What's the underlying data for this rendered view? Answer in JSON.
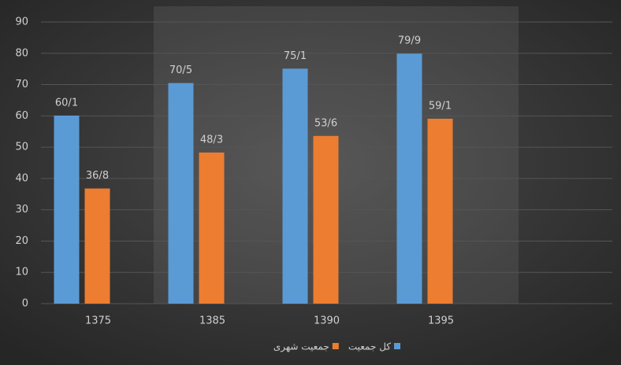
{
  "chart_data": {
    "type": "bar",
    "categories": [
      "1375",
      "1385",
      "1390",
      "1395",
      null
    ],
    "series": [
      {
        "name": "کل جمعیت",
        "color": "#5b9bd5",
        "values": [
          60.1,
          70.5,
          75.1,
          79.9,
          null
        ],
        "value_labels": [
          "60/1",
          "70/5",
          "75/1",
          "79/9",
          null
        ]
      },
      {
        "name": "جمعیت شهری",
        "color": "#ed7d31",
        "values": [
          36.8,
          48.3,
          53.6,
          59.1,
          null
        ],
        "value_labels": [
          "36/8",
          "48/3",
          "53/6",
          "59/1",
          null
        ]
      }
    ],
    "ylim": [
      0,
      90
    ],
    "yticks": [
      0,
      10,
      20,
      30,
      40,
      50,
      60,
      70,
      80,
      90
    ],
    "grid": true,
    "legend": "bottom"
  }
}
